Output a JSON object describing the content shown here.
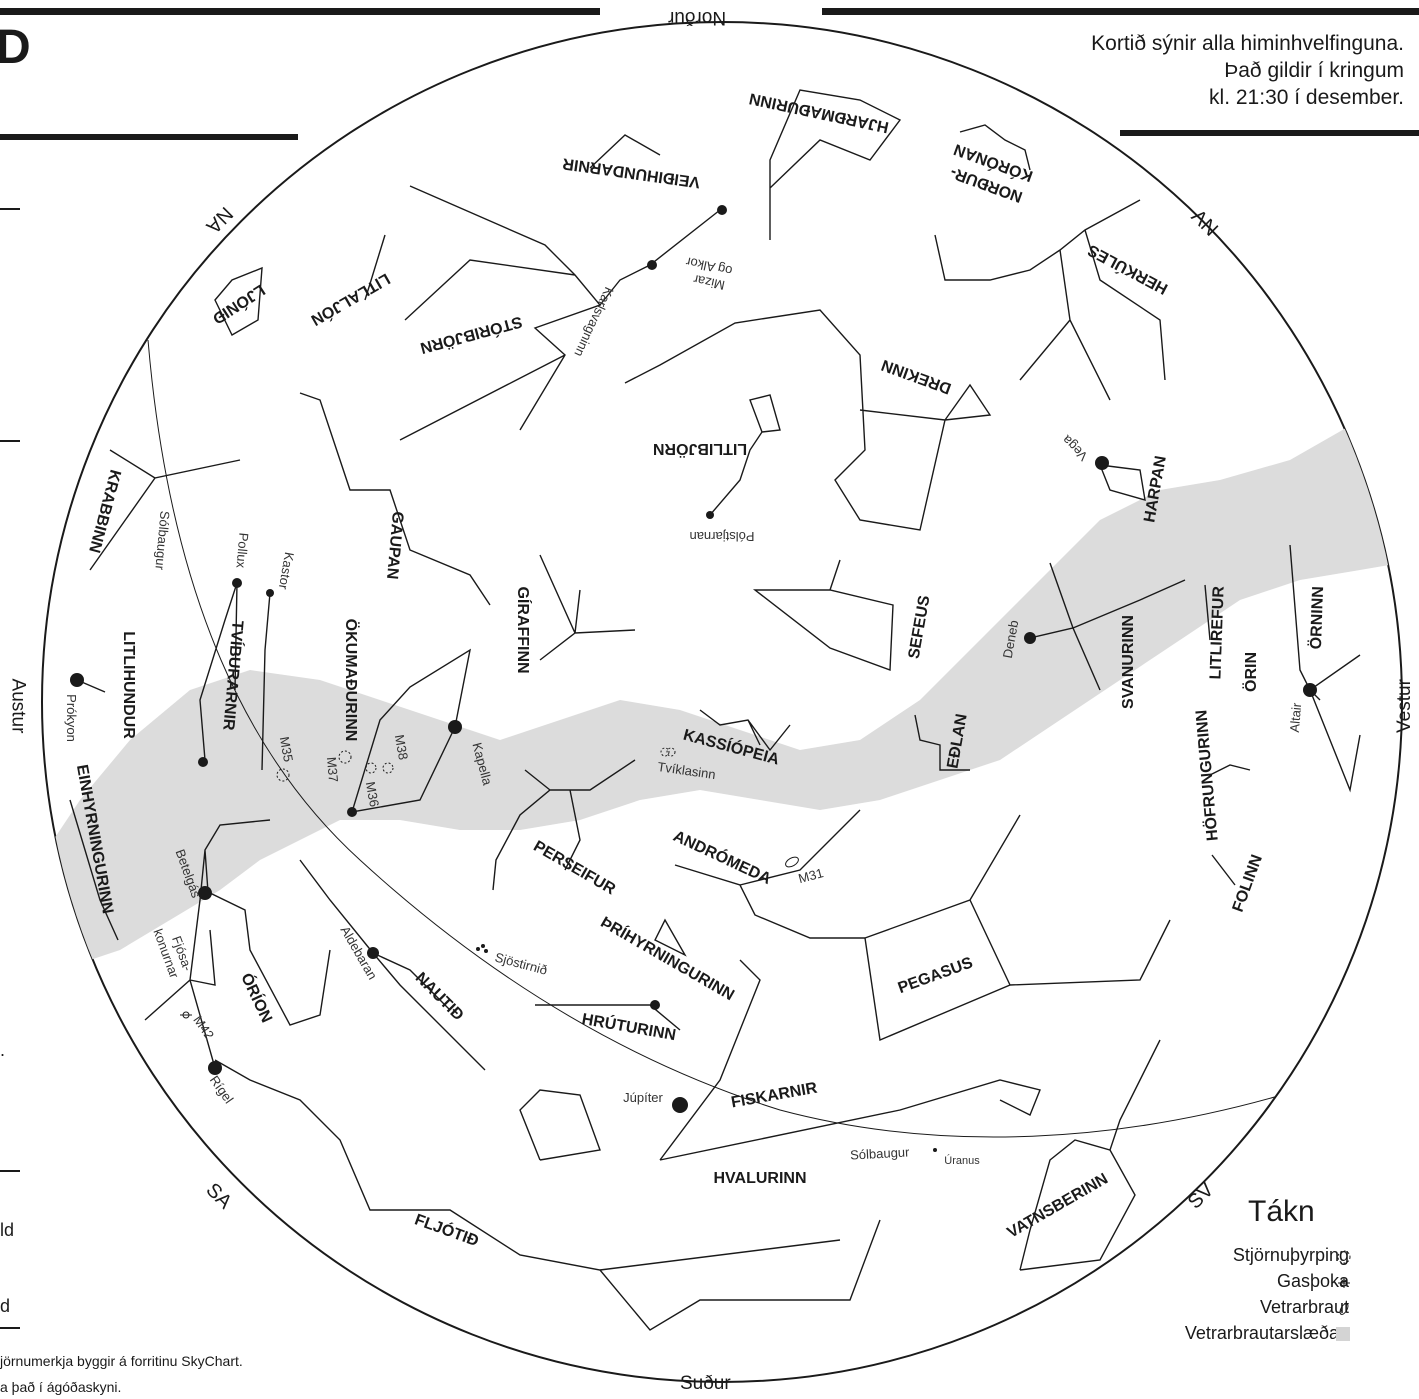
{
  "page": {
    "letter": "D",
    "description_lines": [
      "Kortið sýnir alla himinhvelfinguna.",
      "Það gildir í kringum",
      "kl. 21:30 í desember."
    ],
    "footer_lines": [
      "jörnumerkja byggir á forritinu SkyChart.",
      "a það í ágóðaskyni."
    ],
    "left_fragments": [
      ".",
      "ld",
      "d"
    ]
  },
  "directions": {
    "north": "Norður",
    "south": "Suður",
    "east": "Austur",
    "west": "Vestur",
    "ne": "NA",
    "nw": "NV",
    "se": "SA",
    "sw": "SV"
  },
  "legend": {
    "title": "Tákn",
    "items": [
      {
        "label": "Stjörnuþyrping",
        "symbol": "star-cluster-icon"
      },
      {
        "label": "Gasþoka",
        "symbol": "nebula-icon"
      },
      {
        "label": "Vetrarbraut",
        "symbol": "galaxy-icon"
      },
      {
        "label": "Vetrarbrautarslæðan",
        "symbol": "milky-way-swatch"
      }
    ]
  },
  "constellations": {
    "hjardmadurinn": "HJARÐMAÐURINN",
    "veidihundarnir": "VEIÐIHUNDARNIR",
    "nordurkorona": [
      "NORÐUR-",
      "KÓRÓNAN"
    ],
    "herkules": "HERKÚLES",
    "litliljon": "LITLALJÓN",
    "ljonid": "LJÓNIÐ",
    "storibjorn": "STÓRIBJÖRN",
    "drekinn": "DREKINN",
    "litlibjorn": "LITLIBJÖRN",
    "harpan": "HARPAN",
    "krabbinn": "KRABBINN",
    "gaupan": "GAUPAN",
    "giraffinn": "GÍRAFFINN",
    "sefeus": "SEFEUS",
    "svanurinn": "SVANURINN",
    "litlirefur": "LITLIREFUR",
    "orin_w": "ÖRIN",
    "ornninn": "ÖRNINN",
    "tviburarnir": "TVÍBURARNIR",
    "litlihundur": "LITLIHUNDUR",
    "okumadurinn": "ÖKUMAÐURINN",
    "kassiopeia": "KASSÍÓPEIA",
    "edlan": "EÐLAN",
    "hofrungurinn": "HÖFRUNGURINN",
    "einhyrningurinn": "EINHYRNINGURINN",
    "perseifur": "PERSEIFUR",
    "andromeda": "ANDRÓMEDA",
    "folinn": "FOLINN",
    "orion": "ÓRÍON",
    "nautid": "NAUTIÐ",
    "thrihyrningurinn": "ÞRÍHYRNINGURINN",
    "pegasus": "PEGASUS",
    "hruturinn": "HRÚTURINN",
    "fiskarnir": "FISKARNIR",
    "hvalurinn": "HVALURINN",
    "fljotid": "FLJÓTIÐ",
    "vatnsberinn": "VATNSBERINN"
  },
  "labels": {
    "mizar": [
      "Mizar",
      "og Alkor"
    ],
    "karlsvagninn": "Karlsvagninn",
    "polstjarnan": "Pólstjarnan",
    "vega": "Vega",
    "solbaugur": "Sólbaugur",
    "pollux": "Pollux",
    "kastor": "Kastor",
    "deneb": "Deneb",
    "altair": "Altair",
    "prokyon": "Prókyon",
    "kapella": "Kapella",
    "m35": "M35",
    "m36": "M36",
    "m37": "M37",
    "m38": "M38",
    "tviklasinn": "Tvíklasinn",
    "m31": "M31",
    "betelgas": "Betelgás",
    "fjosakonurnar": [
      "Fjósa-",
      "konurnar"
    ],
    "aldebaran": "Aldebaran",
    "sjostirnid": "Sjöstirnið",
    "m42": "M42",
    "rigel": "Rígel",
    "jupiter": "Júpíter",
    "uranus": "Úranus"
  }
}
